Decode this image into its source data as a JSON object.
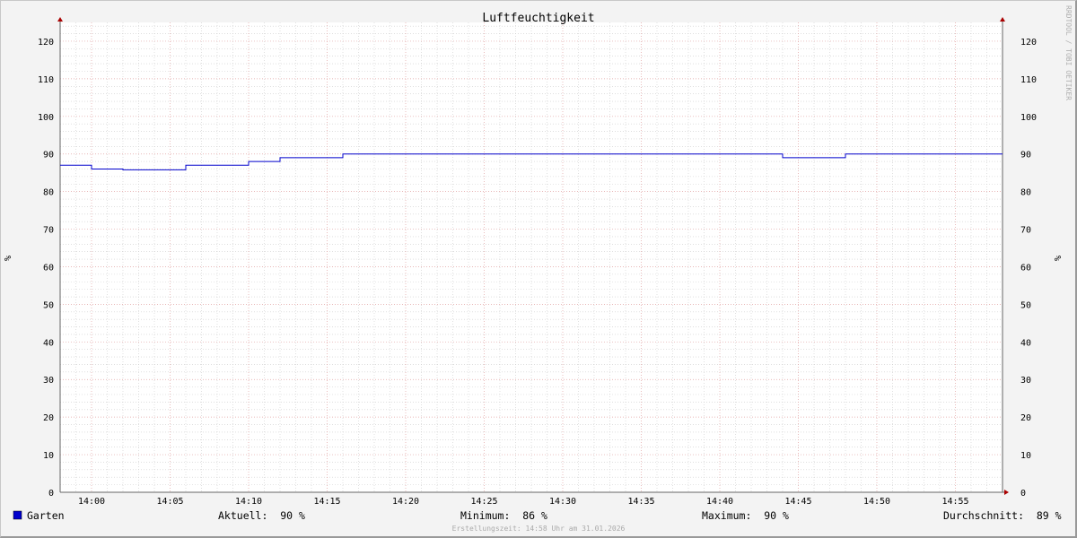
{
  "chart_data": {
    "type": "line",
    "title": "Luftfeuchtigkeit",
    "ylabel": "%",
    "ylim": [
      0,
      125
    ],
    "y_ticks": [
      0,
      10,
      20,
      30,
      40,
      50,
      60,
      70,
      80,
      90,
      100,
      110,
      120
    ],
    "x_range": [
      "13:58",
      "14:58"
    ],
    "x_ticks": [
      "14:00",
      "14:05",
      "14:10",
      "14:15",
      "14:20",
      "14:25",
      "14:30",
      "14:35",
      "14:40",
      "14:45",
      "14:50",
      "14:55"
    ],
    "grid": true,
    "series": [
      {
        "name": "Garten",
        "color": "#0000cc",
        "step": true,
        "x": [
          "13:58",
          "14:00",
          "14:02",
          "14:06",
          "14:10",
          "14:12",
          "14:16",
          "14:44",
          "14:48",
          "14:58"
        ],
        "values": [
          87,
          86,
          85.8,
          87,
          88,
          89,
          90,
          89,
          90,
          90
        ]
      }
    ],
    "legend": {
      "series_name": "Garten",
      "aktuell": "Aktuell:  90 %",
      "minimum": "Minimum:  86 %",
      "maximum": "Maximum:  90 %",
      "durchschnitt": "Durchschnitt:  89 %"
    },
    "footer": "Erstellungszeit: 14:58 Uhr am 31.01.2026",
    "watermark": "RRDTOOL / TOBI OETIKER"
  }
}
